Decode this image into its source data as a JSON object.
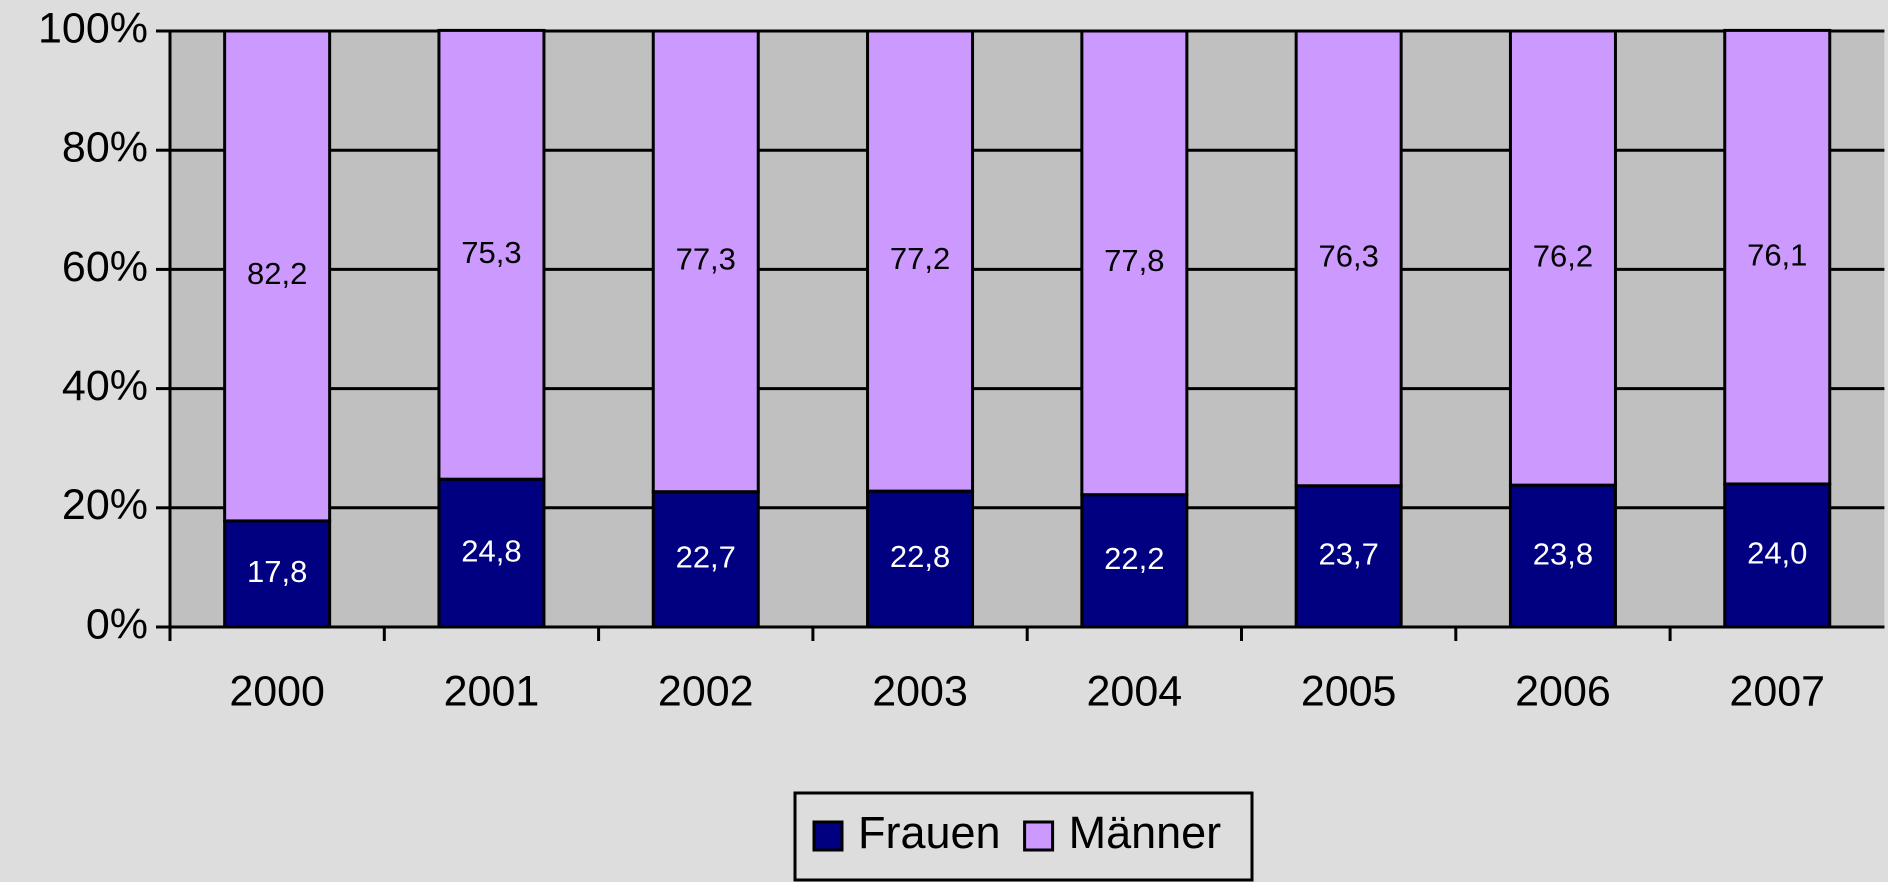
{
  "chart_data": {
    "type": "stacked_bar",
    "categories": [
      "2000",
      "2001",
      "2002",
      "2003",
      "2004",
      "2005",
      "2006",
      "2007"
    ],
    "series": [
      {
        "name": "Frauen",
        "color": "#000080",
        "values": [
          17.8,
          24.8,
          22.7,
          22.8,
          22.2,
          23.7,
          23.8,
          24.0
        ],
        "value_labels": [
          "17,8",
          "24,8",
          "22,7",
          "22,8",
          "22,2",
          "23,7",
          "23,8",
          "24,0"
        ]
      },
      {
        "name": "Männer",
        "color": "#cc99ff",
        "values": [
          82.2,
          75.3,
          77.3,
          77.2,
          77.8,
          76.3,
          76.2,
          76.1
        ],
        "value_labels": [
          "82,2",
          "75,3",
          "77,3",
          "77,2",
          "77,8",
          "76,3",
          "76,2",
          "76,1"
        ]
      }
    ],
    "ylim": [
      0,
      100
    ],
    "yticks": [
      {
        "value": 0,
        "label": "0%"
      },
      {
        "value": 20,
        "label": "20%"
      },
      {
        "value": 40,
        "label": "40%"
      },
      {
        "value": 60,
        "label": "60%"
      },
      {
        "value": 80,
        "label": "80%"
      },
      {
        "value": 100,
        "label": "100%"
      }
    ],
    "grid": true,
    "legend": "bottom"
  }
}
